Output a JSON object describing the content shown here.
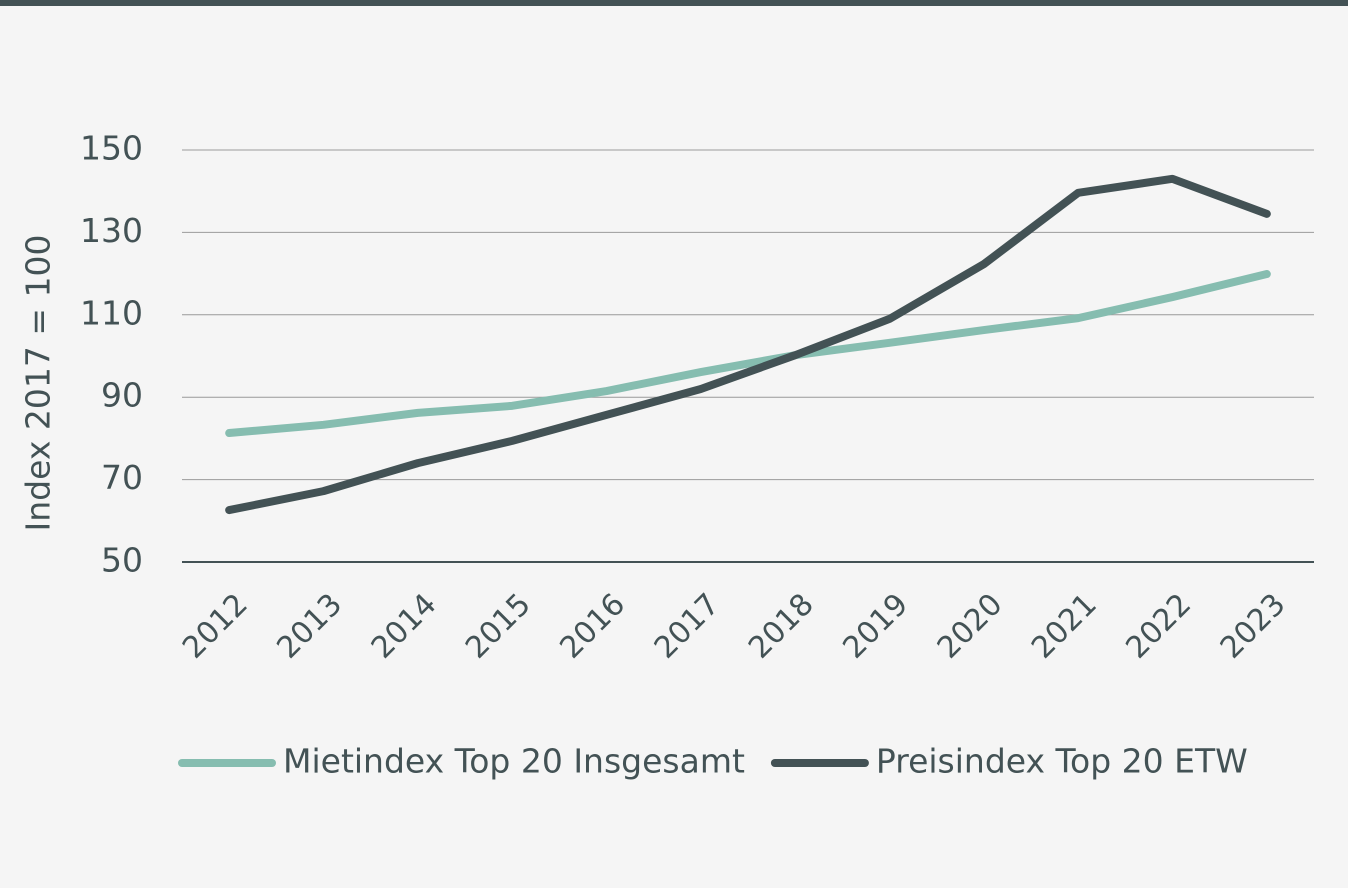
{
  "chart_data": {
    "type": "line",
    "y_label": "Index 2017 = 100",
    "categories": [
      "2012",
      "2013",
      "2014",
      "2015",
      "2016",
      "2017",
      "2018",
      "2019",
      "2020",
      "2021",
      "2022",
      "2023"
    ],
    "series": [
      {
        "name": "Mietindex Top 20 Insgesamt",
        "color": "#86bdb0",
        "values": [
          81.3,
          83.3,
          86.2,
          87.9,
          91.5,
          96.1,
          100.2,
          103.2,
          106.3,
          109.2,
          114.3,
          119.9
        ]
      },
      {
        "name": "Preisindex Top 20 ETW",
        "color": "#435255",
        "values": [
          62.6,
          67.2,
          74.0,
          79.4,
          85.7,
          92.0,
          100.2,
          109.0,
          122.3,
          139.6,
          143.0,
          134.5
        ]
      }
    ],
    "ylim": [
      50,
      150
    ],
    "yticks": [
      50,
      70,
      90,
      110,
      130,
      150
    ],
    "grid": true,
    "legend": "bottom"
  }
}
